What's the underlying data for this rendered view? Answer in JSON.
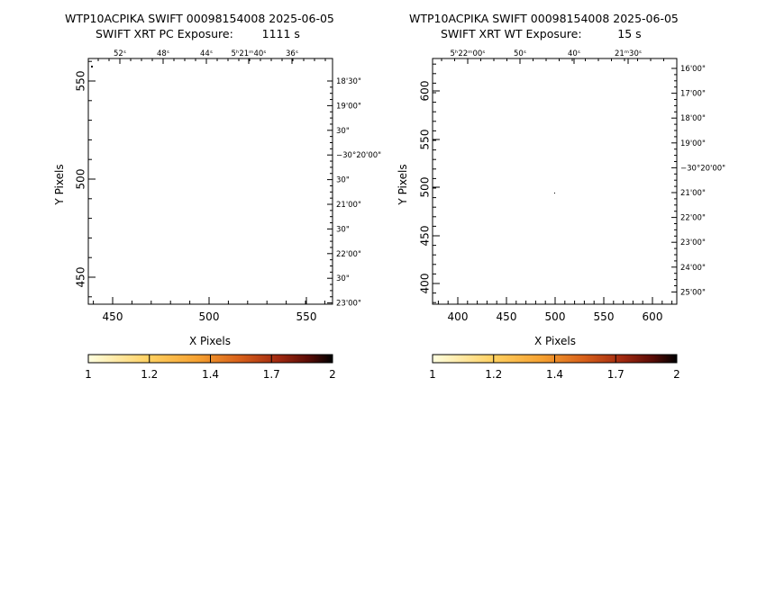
{
  "panels": [
    {
      "title_line1": "WTP10ACPIKA SWIFT 00098154008 2025-06-05",
      "title_line2": "SWIFT XRT PC Exposure:        1111 s",
      "x_label": "X Pixels",
      "y_label": "Y Pixels",
      "x_ticks": [
        "450",
        "500",
        "550"
      ],
      "y_ticks": [
        "450",
        "500",
        "550"
      ],
      "ra_ticks": [
        "52ˢ",
        "48ˢ",
        "44ˢ",
        "5ʰ21ᵐ40ˢ",
        "36ˢ"
      ],
      "dec_ticks": [
        "18'30\"",
        "19'00\"",
        "30\"",
        "−30°20'00\"",
        "30\"",
        "21'00\"",
        "30\"",
        "22'00\"",
        "30\"",
        "23'00\""
      ],
      "colorbar_ticks": [
        "1",
        "1.2",
        "1.4",
        "1.7",
        "2"
      ]
    },
    {
      "title_line1": "WTP10ACPIKA SWIFT 00098154008 2025-06-05",
      "title_line2": "SWIFT XRT WT Exposure:          15 s",
      "x_label": "X Pixels",
      "y_label": "Y Pixels",
      "x_ticks": [
        "400",
        "450",
        "500",
        "550",
        "600"
      ],
      "y_ticks": [
        "400",
        "450",
        "500",
        "550",
        "600"
      ],
      "ra_ticks": [
        "5ʰ22ᵐ00ˢ",
        "50ˢ",
        "40ˢ",
        "21ᵐ30ˢ"
      ],
      "dec_ticks": [
        "16'00\"",
        "17'00\"",
        "18'00\"",
        "19'00\"",
        "−30°20'00\"",
        "21'00\"",
        "22'00\"",
        "23'00\"",
        "24'00\"",
        "25'00\""
      ],
      "colorbar_ticks": [
        "1",
        "1.2",
        "1.4",
        "1.7",
        "2"
      ]
    }
  ],
  "colormap": [
    "#ffffe0",
    "#ffd060",
    "#f5a030",
    "#d8601a",
    "#a02810",
    "#5a0c06",
    "#000000"
  ]
}
